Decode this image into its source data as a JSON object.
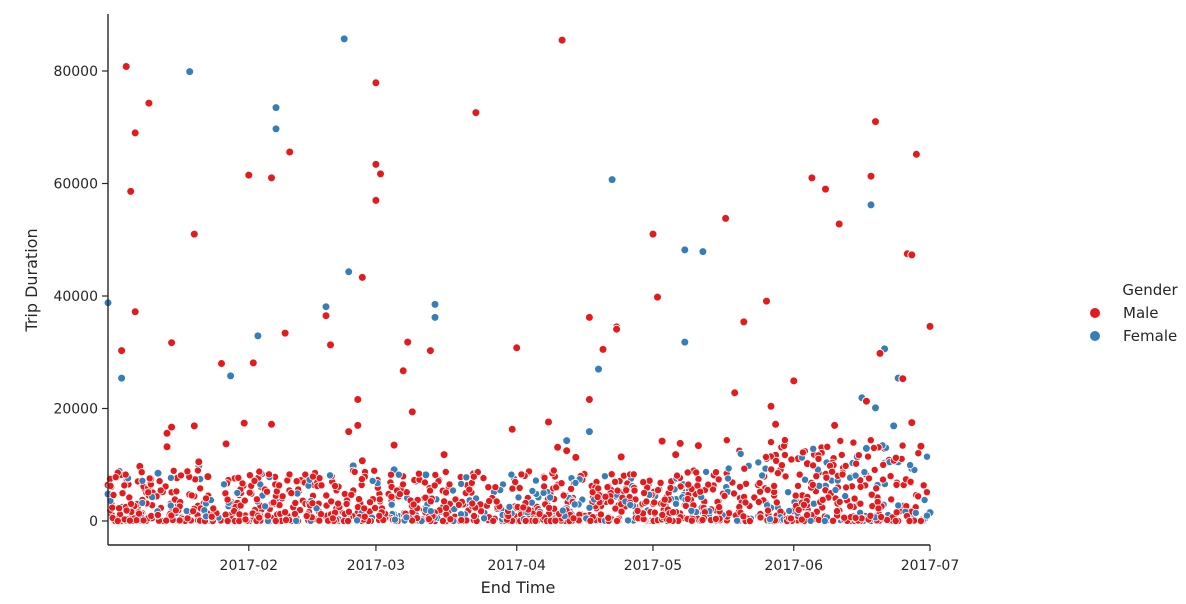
{
  "chart_data": {
    "type": "scatter",
    "title": "",
    "xlabel": "End Time",
    "ylabel": "Trip Duration",
    "xlim": [
      "2017-01-01",
      "2017-07-01"
    ],
    "ylim": [
      -4000,
      90000
    ],
    "x_ticks": [
      "2017-02",
      "2017-03",
      "2017-04",
      "2017-05",
      "2017-06",
      "2017-07"
    ],
    "y_ticks": [
      0,
      20000,
      40000,
      60000,
      80000
    ],
    "legend": {
      "title": "Gender",
      "position": "right"
    },
    "series": [
      {
        "name": "Male",
        "color": "#e41a1c",
        "points": [
          [
            "2017-01-01",
            6400
          ],
          [
            "2017-01-04",
            30300
          ],
          [
            "2017-01-05",
            80800
          ],
          [
            "2017-01-06",
            58600
          ],
          [
            "2017-01-07",
            69000
          ],
          [
            "2017-01-07",
            37200
          ],
          [
            "2017-01-08",
            9700
          ],
          [
            "2017-01-10",
            74300
          ],
          [
            "2017-01-13",
            5200
          ],
          [
            "2017-01-14",
            15600
          ],
          [
            "2017-01-14",
            13200
          ],
          [
            "2017-01-15",
            31700
          ],
          [
            "2017-01-15",
            16700
          ],
          [
            "2017-01-19",
            4700
          ],
          [
            "2017-01-20",
            51000
          ],
          [
            "2017-01-20",
            16900
          ],
          [
            "2017-01-21",
            10500
          ],
          [
            "2017-01-23",
            7900
          ],
          [
            "2017-01-26",
            28000
          ],
          [
            "2017-01-27",
            13700
          ],
          [
            "2017-01-31",
            17400
          ],
          [
            "2017-02-01",
            61500
          ],
          [
            "2017-02-02",
            28100
          ],
          [
            "2017-02-06",
            61000
          ],
          [
            "2017-02-06",
            17200
          ],
          [
            "2017-02-09",
            33400
          ],
          [
            "2017-02-10",
            65600
          ],
          [
            "2017-02-12",
            5300
          ],
          [
            "2017-02-18",
            36500
          ],
          [
            "2017-02-19",
            31300
          ],
          [
            "2017-02-23",
            15900
          ],
          [
            "2017-02-25",
            21600
          ],
          [
            "2017-02-25",
            17000
          ],
          [
            "2017-02-26",
            10700
          ],
          [
            "2017-02-26",
            43300
          ],
          [
            "2017-03-01",
            77900
          ],
          [
            "2017-03-01",
            63400
          ],
          [
            "2017-03-01",
            57000
          ],
          [
            "2017-03-02",
            61700
          ],
          [
            "2017-03-05",
            13500
          ],
          [
            "2017-03-07",
            26700
          ],
          [
            "2017-03-08",
            31800
          ],
          [
            "2017-03-09",
            19400
          ],
          [
            "2017-03-13",
            30300
          ],
          [
            "2017-03-16",
            11800
          ],
          [
            "2017-03-23",
            72600
          ],
          [
            "2017-03-31",
            16300
          ],
          [
            "2017-04-01",
            30800
          ],
          [
            "2017-04-08",
            17600
          ],
          [
            "2017-04-10",
            13100
          ],
          [
            "2017-04-11",
            85500
          ],
          [
            "2017-04-12",
            12500
          ],
          [
            "2017-04-14",
            11300
          ],
          [
            "2017-04-17",
            36200
          ],
          [
            "2017-04-17",
            21600
          ],
          [
            "2017-04-20",
            30500
          ],
          [
            "2017-04-23",
            34500
          ],
          [
            "2017-04-23",
            34100
          ],
          [
            "2017-04-24",
            11400
          ],
          [
            "2017-05-01",
            51000
          ],
          [
            "2017-05-02",
            39800
          ],
          [
            "2017-05-03",
            14200
          ],
          [
            "2017-05-06",
            11800
          ],
          [
            "2017-05-07",
            13800
          ],
          [
            "2017-05-10",
            8900
          ],
          [
            "2017-05-11",
            13400
          ],
          [
            "2017-05-17",
            53800
          ],
          [
            "2017-05-19",
            22800
          ],
          [
            "2017-05-21",
            35400
          ],
          [
            "2017-05-26",
            39100
          ],
          [
            "2017-05-27",
            20400
          ],
          [
            "2017-05-28",
            17200
          ],
          [
            "2017-05-28",
            11700
          ],
          [
            "2017-06-01",
            24900
          ],
          [
            "2017-06-02",
            11100
          ],
          [
            "2017-06-04",
            10200
          ],
          [
            "2017-06-05",
            61000
          ],
          [
            "2017-06-08",
            59000
          ],
          [
            "2017-06-10",
            17000
          ],
          [
            "2017-06-11",
            52800
          ],
          [
            "2017-06-17",
            21300
          ],
          [
            "2017-06-18",
            61300
          ],
          [
            "2017-06-19",
            71000
          ],
          [
            "2017-06-20",
            29800
          ],
          [
            "2017-06-21",
            12900
          ],
          [
            "2017-06-22",
            10800
          ],
          [
            "2017-06-25",
            25300
          ],
          [
            "2017-06-26",
            47500
          ],
          [
            "2017-06-27",
            47300
          ],
          [
            "2017-06-27",
            17500
          ],
          [
            "2017-06-28",
            65200
          ],
          [
            "2017-06-29",
            13300
          ],
          [
            "2017-07-01",
            34600
          ]
        ]
      },
      {
        "name": "Female",
        "color": "#377eb8",
        "points": [
          [
            "2017-01-01",
            38800
          ],
          [
            "2017-01-01",
            4800
          ],
          [
            "2017-01-04",
            25400
          ],
          [
            "2017-01-12",
            8500
          ],
          [
            "2017-01-19",
            79900
          ],
          [
            "2017-01-21",
            9800
          ],
          [
            "2017-01-28",
            25800
          ],
          [
            "2017-02-03",
            32900
          ],
          [
            "2017-02-07",
            69700
          ],
          [
            "2017-02-07",
            73500
          ],
          [
            "2017-02-18",
            38100
          ],
          [
            "2017-02-22",
            85700
          ],
          [
            "2017-02-23",
            44300
          ],
          [
            "2017-02-24",
            9800
          ],
          [
            "2017-03-05",
            9100
          ],
          [
            "2017-03-14",
            38500
          ],
          [
            "2017-03-14",
            36200
          ],
          [
            "2017-03-12",
            8200
          ],
          [
            "2017-04-12",
            14300
          ],
          [
            "2017-04-17",
            15900
          ],
          [
            "2017-04-19",
            27000
          ],
          [
            "2017-04-22",
            60700
          ],
          [
            "2017-05-08",
            48200
          ],
          [
            "2017-05-08",
            31800
          ],
          [
            "2017-05-12",
            47900
          ],
          [
            "2017-05-30",
            13700
          ],
          [
            "2017-06-08",
            6200
          ],
          [
            "2017-06-15",
            11400
          ],
          [
            "2017-06-16",
            21900
          ],
          [
            "2017-06-17",
            12900
          ],
          [
            "2017-06-18",
            56200
          ],
          [
            "2017-06-19",
            20100
          ],
          [
            "2017-06-21",
            30600
          ],
          [
            "2017-06-21",
            10300
          ],
          [
            "2017-06-23",
            16900
          ],
          [
            "2017-06-24",
            25400
          ],
          [
            "2017-06-24",
            10500
          ],
          [
            "2017-06-27",
            9300
          ],
          [
            "2017-07-01",
            1500
          ]
        ]
      }
    ]
  }
}
